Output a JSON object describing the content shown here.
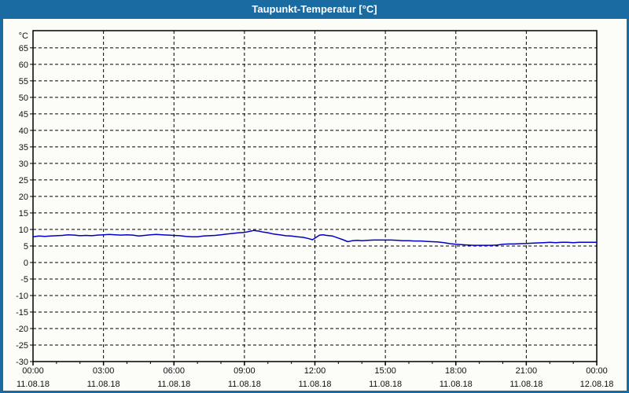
{
  "colors": {
    "titlebar_bg": "#1b6ba3",
    "frame": "#1b6ba3",
    "title_text": "#ffffff",
    "grid": "#000000",
    "axis": "#000000",
    "line": "#0000c8"
  },
  "chart_data": {
    "type": "line",
    "title": "Taupunkt-Temperatur [°C]",
    "ylabel": "°C",
    "xlabel": "",
    "grid": "dashed",
    "legend": null,
    "ylim": [
      -30,
      70.2
    ],
    "xlim_hours": [
      0,
      24
    ],
    "x_minor_step_hours": 1,
    "x_major_step_hours": 3,
    "y_ticks": [
      65,
      60,
      55,
      50,
      45,
      40,
      35,
      30,
      25,
      20,
      15,
      10,
      5,
      0,
      -5,
      -10,
      -15,
      -20,
      -25,
      -30
    ],
    "x_ticks": [
      {
        "hour": 0,
        "time": "00:00",
        "date": "11.08.18"
      },
      {
        "hour": 3,
        "time": "03:00",
        "date": "11.08.18"
      },
      {
        "hour": 6,
        "time": "06:00",
        "date": "11.08.18"
      },
      {
        "hour": 9,
        "time": "09:00",
        "date": "11.08.18"
      },
      {
        "hour": 12,
        "time": "12:00",
        "date": "11.08.18"
      },
      {
        "hour": 15,
        "time": "15:00",
        "date": "11.08.18"
      },
      {
        "hour": 18,
        "time": "18:00",
        "date": "11.08.18"
      },
      {
        "hour": 21,
        "time": "21:00",
        "date": "11.08.18"
      },
      {
        "hour": 24,
        "time": "00:00",
        "date": "12.08.18"
      }
    ],
    "series": [
      {
        "name": "Taupunkt-Temperatur",
        "color": "#0000c8",
        "points_hours_degC": [
          [
            0,
            7.8
          ],
          [
            0.25,
            8.0
          ],
          [
            0.5,
            7.9
          ],
          [
            0.75,
            8.0
          ],
          [
            1,
            8.1
          ],
          [
            1.25,
            8.2
          ],
          [
            1.5,
            8.4
          ],
          [
            1.75,
            8.3
          ],
          [
            2,
            8.1
          ],
          [
            2.25,
            8.2
          ],
          [
            2.5,
            8.1
          ],
          [
            2.75,
            8.3
          ],
          [
            3,
            8.4
          ],
          [
            3.25,
            8.5
          ],
          [
            3.5,
            8.4
          ],
          [
            3.75,
            8.3
          ],
          [
            4,
            8.4
          ],
          [
            4.25,
            8.3
          ],
          [
            4.5,
            8.0
          ],
          [
            4.75,
            8.2
          ],
          [
            5,
            8.4
          ],
          [
            5.25,
            8.5
          ],
          [
            5.5,
            8.4
          ],
          [
            5.75,
            8.3
          ],
          [
            6,
            8.2
          ],
          [
            6.25,
            8.1
          ],
          [
            6.5,
            7.9
          ],
          [
            6.75,
            7.8
          ],
          [
            7,
            7.8
          ],
          [
            7.25,
            8.0
          ],
          [
            7.5,
            8.1
          ],
          [
            7.75,
            8.2
          ],
          [
            8,
            8.4
          ],
          [
            8.25,
            8.6
          ],
          [
            8.5,
            8.8
          ],
          [
            8.75,
            9.0
          ],
          [
            9,
            9.1
          ],
          [
            9.2,
            9.4
          ],
          [
            9.4,
            9.7
          ],
          [
            9.6,
            9.5
          ],
          [
            9.8,
            9.2
          ],
          [
            10,
            9.0
          ],
          [
            10.25,
            8.6
          ],
          [
            10.5,
            8.4
          ],
          [
            10.75,
            8.1
          ],
          [
            11,
            8.0
          ],
          [
            11.25,
            7.8
          ],
          [
            11.5,
            7.6
          ],
          [
            11.7,
            7.3
          ],
          [
            11.9,
            6.9
          ],
          [
            12.05,
            7.6
          ],
          [
            12.2,
            8.3
          ],
          [
            12.35,
            8.4
          ],
          [
            12.5,
            8.2
          ],
          [
            12.75,
            8.0
          ],
          [
            13,
            7.4
          ],
          [
            13.2,
            6.9
          ],
          [
            13.4,
            6.3
          ],
          [
            13.6,
            6.6
          ],
          [
            13.8,
            6.7
          ],
          [
            14,
            6.6
          ],
          [
            14.25,
            6.7
          ],
          [
            14.5,
            6.8
          ],
          [
            14.75,
            6.8
          ],
          [
            15,
            6.8
          ],
          [
            15.25,
            6.8
          ],
          [
            15.5,
            6.7
          ],
          [
            15.75,
            6.6
          ],
          [
            16,
            6.6
          ],
          [
            16.25,
            6.5
          ],
          [
            16.5,
            6.5
          ],
          [
            16.75,
            6.4
          ],
          [
            17,
            6.3
          ],
          [
            17.25,
            6.2
          ],
          [
            17.5,
            6.0
          ],
          [
            17.75,
            5.7
          ],
          [
            18,
            5.5
          ],
          [
            18.25,
            5.4
          ],
          [
            18.5,
            5.3
          ],
          [
            18.75,
            5.2
          ],
          [
            19,
            5.2
          ],
          [
            19.25,
            5.2
          ],
          [
            19.5,
            5.2
          ],
          [
            19.75,
            5.3
          ],
          [
            20,
            5.5
          ],
          [
            20.25,
            5.6
          ],
          [
            20.5,
            5.6
          ],
          [
            20.75,
            5.7
          ],
          [
            21,
            5.75
          ],
          [
            21.25,
            5.85
          ],
          [
            21.5,
            5.95
          ],
          [
            21.75,
            6.0
          ],
          [
            22,
            6.1
          ],
          [
            22.25,
            6.0
          ],
          [
            22.5,
            6.1
          ],
          [
            22.75,
            6.1
          ],
          [
            23,
            6.0
          ],
          [
            23.25,
            6.1
          ],
          [
            23.5,
            6.1
          ],
          [
            23.75,
            6.1
          ],
          [
            24,
            6.1
          ]
        ]
      }
    ]
  }
}
